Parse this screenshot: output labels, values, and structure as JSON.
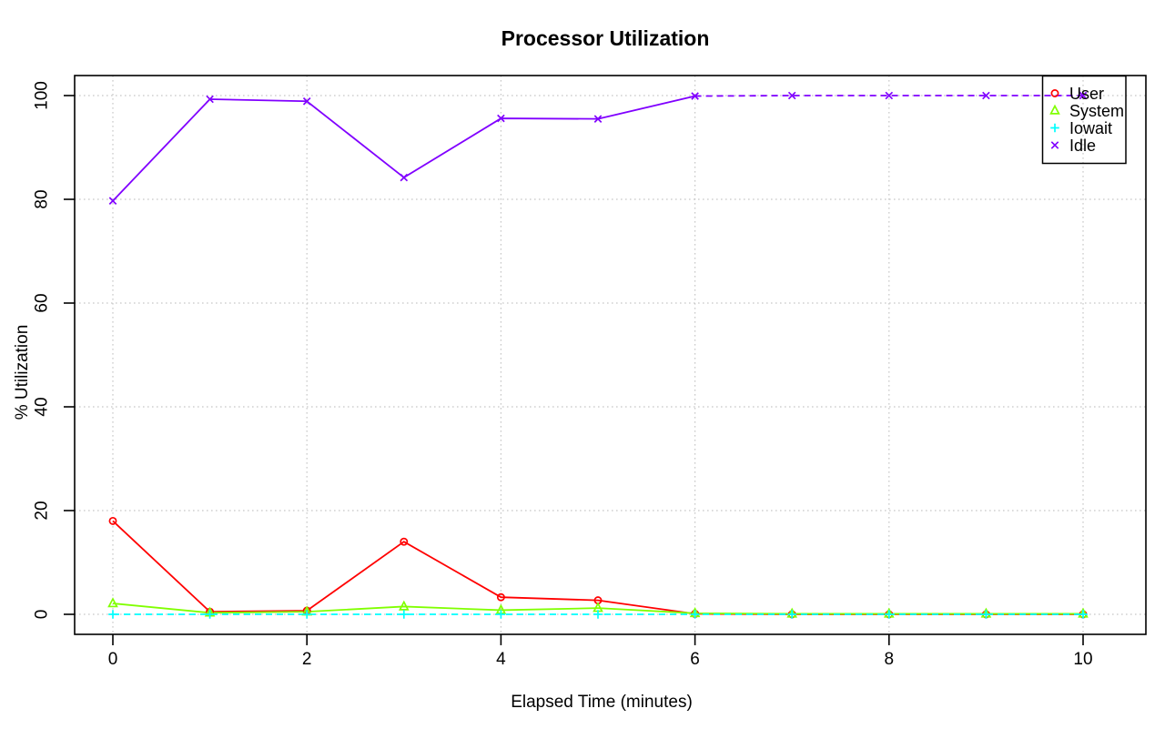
{
  "figure": {
    "background": "#ffffff"
  },
  "chart_data": {
    "type": "line",
    "title": "Processor Utilization",
    "xlabel": "Elapsed Time (minutes)",
    "ylabel": "% Utilization",
    "x": [
      0,
      1,
      2,
      3,
      4,
      5,
      6,
      7,
      8,
      9,
      10
    ],
    "xlim": [
      0,
      10
    ],
    "ylim": [
      0,
      100
    ],
    "xticks": [
      0,
      2,
      4,
      6,
      8,
      10
    ],
    "yticks": [
      0,
      20,
      40,
      60,
      80,
      100
    ],
    "grid": {
      "show": true,
      "style": "dotted",
      "color": "#c7c7c7",
      "at_xticks": true,
      "at_yticks": true
    },
    "legend": {
      "position": "top-right",
      "border": true,
      "transparent_background": true
    },
    "series": [
      {
        "name": "User",
        "color": "#ff0000",
        "marker": "circle",
        "line": "solid",
        "values": [
          18,
          0.5,
          0.7,
          14,
          3.3,
          2.7,
          0.1,
          0,
          0,
          0,
          0
        ]
      },
      {
        "name": "System",
        "color": "#80ff00",
        "marker": "triangle",
        "line": "solid",
        "values": [
          2.1,
          0.3,
          0.5,
          1.5,
          0.8,
          1.2,
          0.2,
          0.1,
          0.1,
          0.1,
          0.1
        ]
      },
      {
        "name": "Iowait",
        "color": "#00ffff",
        "marker": "plus",
        "line": "dashed",
        "values": [
          0,
          0,
          0,
          0,
          0,
          0,
          0,
          0,
          0,
          0,
          0
        ]
      },
      {
        "name": "Idle",
        "color": "#8000ff",
        "marker": "x",
        "line": "solid_then_dashed",
        "dash_from_x": 6,
        "values": [
          79.7,
          99.3,
          98.9,
          84.2,
          95.6,
          95.5,
          99.9,
          100,
          100,
          100,
          100
        ]
      }
    ]
  }
}
